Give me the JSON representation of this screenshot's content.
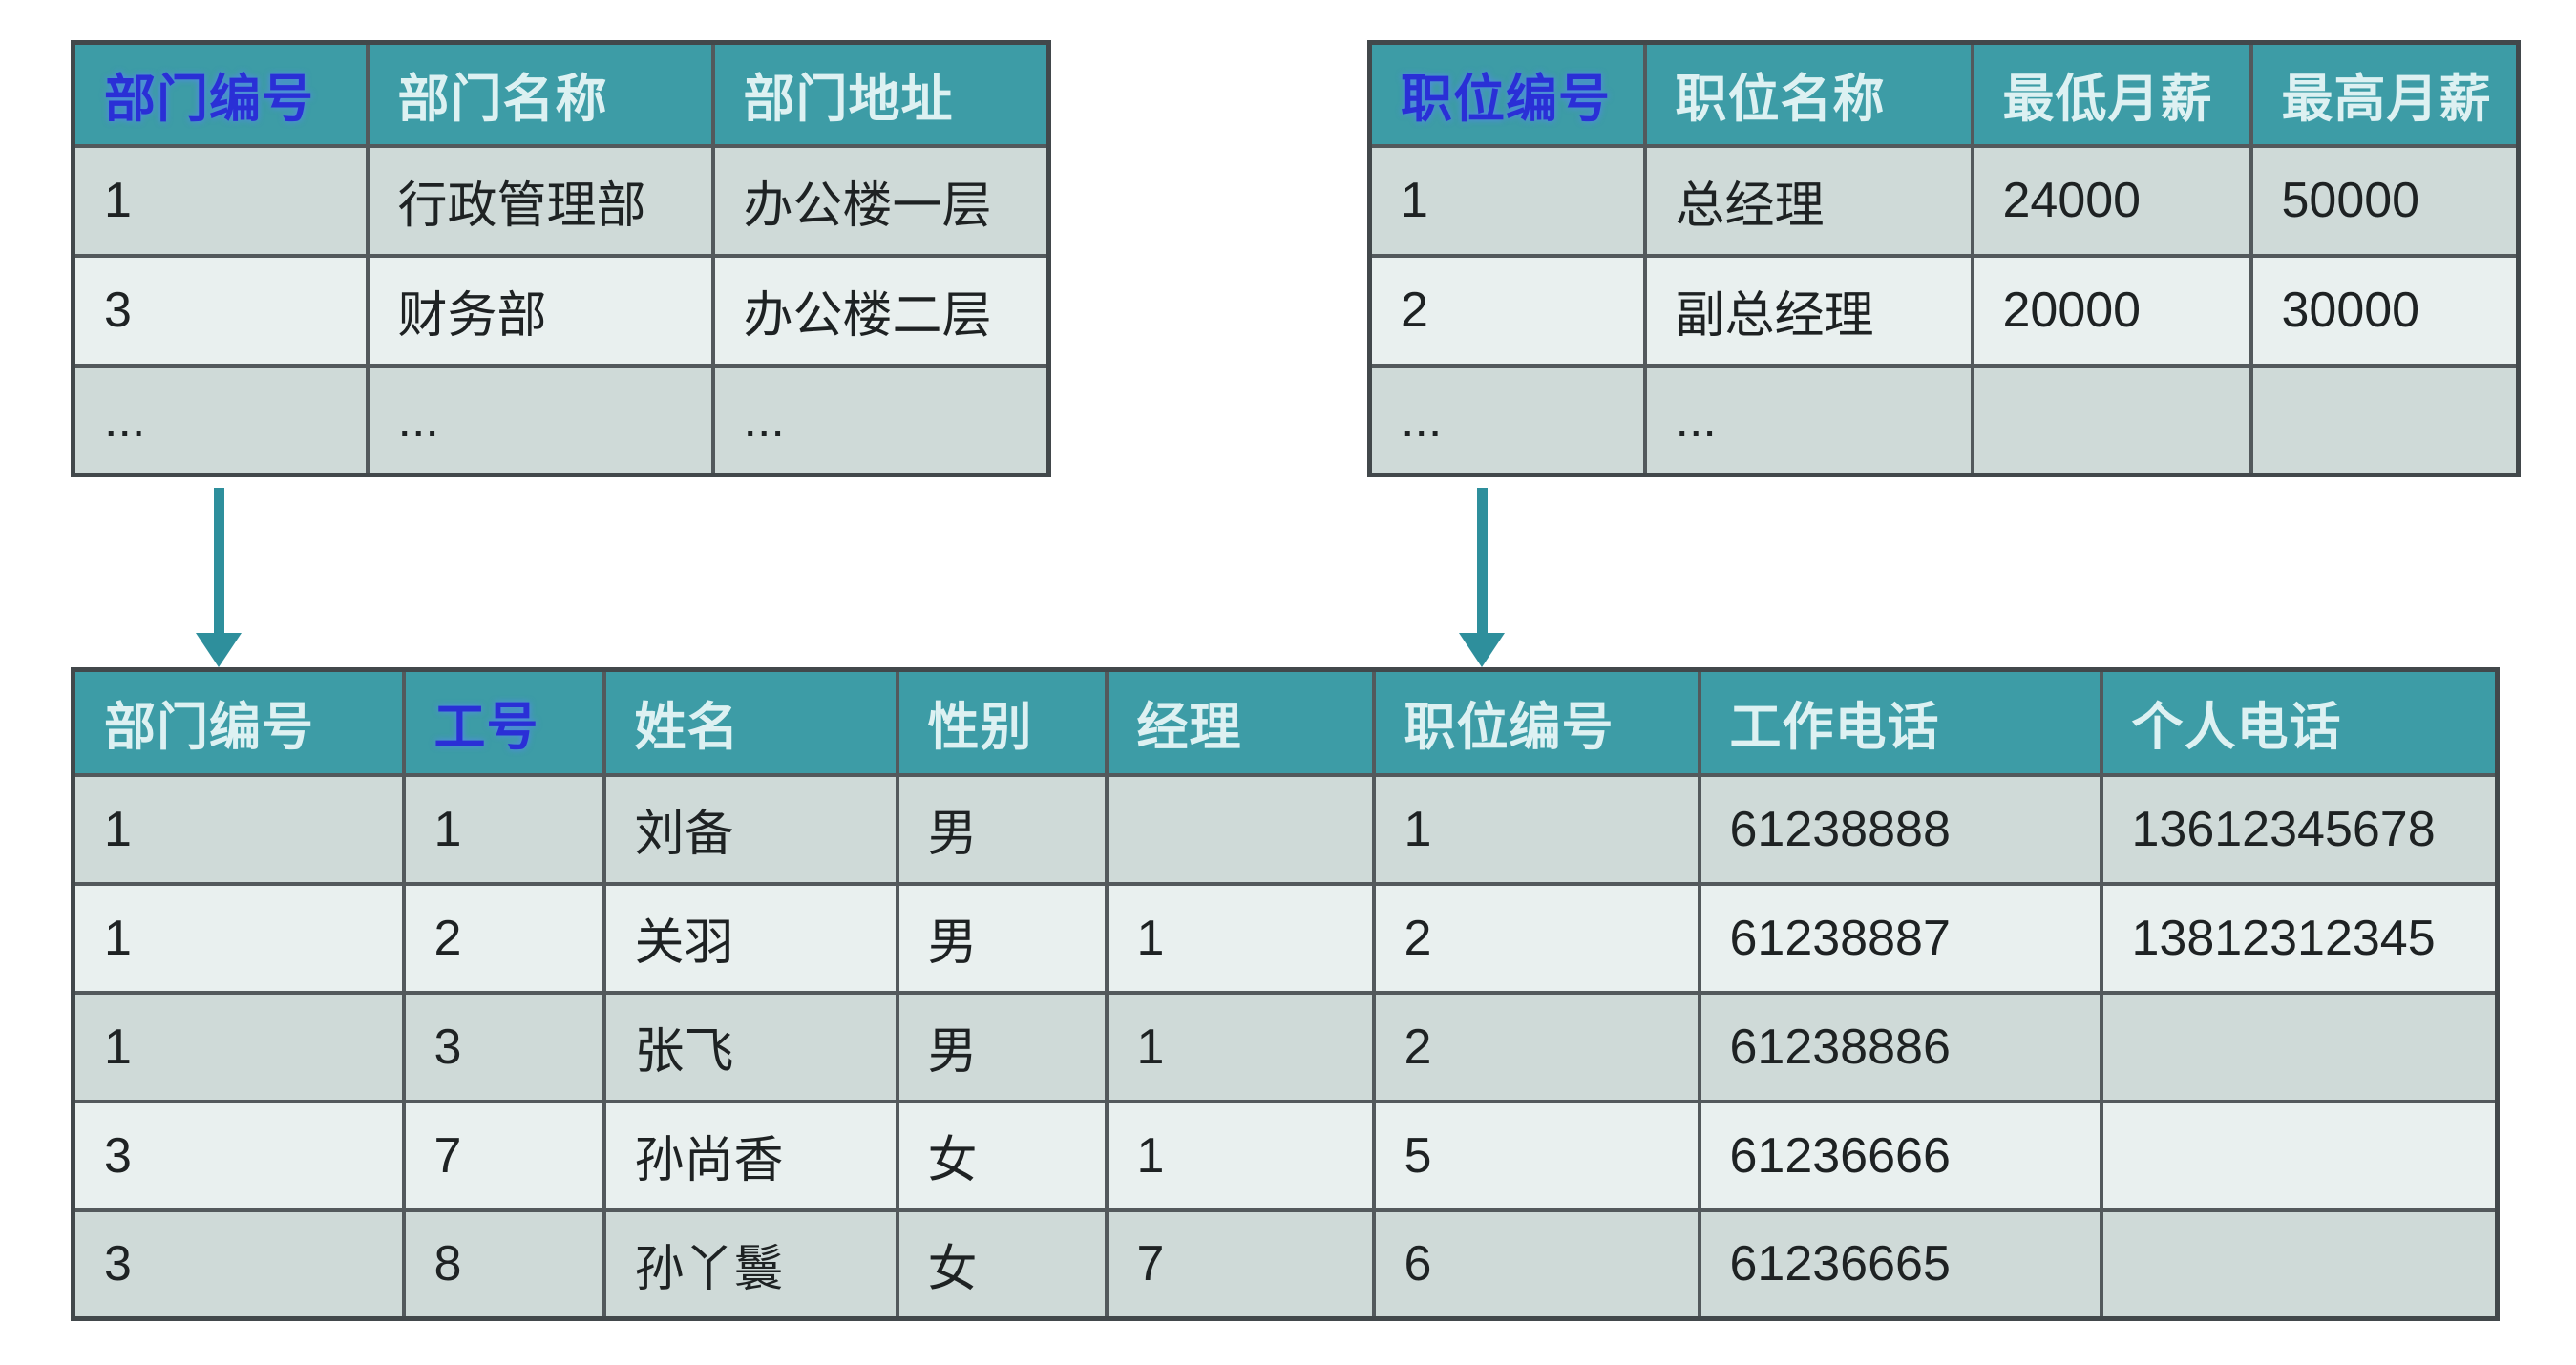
{
  "colors": {
    "header_bg": "#3d9ca6",
    "header_text": "#ddf1f2",
    "key_text": "#2a2fd6",
    "row_odd": "#cfdad8",
    "row_even": "#e9f0ef",
    "border": "#53595c",
    "arrow": "#2e8f9c",
    "cell_text": "#1e2223"
  },
  "icons": {
    "fk_arrow": "arrow-down"
  },
  "tables": {
    "department": {
      "columns": [
        {
          "label": "部门编号",
          "key": true
        },
        {
          "label": "部门名称",
          "key": false
        },
        {
          "label": "部门地址",
          "key": false
        }
      ],
      "rows": [
        [
          "1",
          "行政管理部",
          "办公楼一层"
        ],
        [
          "3",
          "财务部",
          "办公楼二层"
        ],
        [
          "...",
          "...",
          "..."
        ]
      ]
    },
    "position": {
      "columns": [
        {
          "label": "职位编号",
          "key": true
        },
        {
          "label": "职位名称",
          "key": false
        },
        {
          "label": "最低月薪",
          "key": false
        },
        {
          "label": "最高月薪",
          "key": false
        }
      ],
      "rows": [
        [
          "1",
          "总经理",
          "24000",
          "50000"
        ],
        [
          "2",
          "副总经理",
          "20000",
          "30000"
        ],
        [
          "...",
          "...",
          "",
          ""
        ]
      ]
    },
    "employee": {
      "columns": [
        {
          "label": "部门编号",
          "key": false
        },
        {
          "label": "工号",
          "key": true
        },
        {
          "label": "姓名",
          "key": false
        },
        {
          "label": "性别",
          "key": false
        },
        {
          "label": "经理",
          "key": false
        },
        {
          "label": "职位编号",
          "key": false
        },
        {
          "label": "工作电话",
          "key": false
        },
        {
          "label": "个人电话",
          "key": false
        }
      ],
      "rows": [
        [
          "1",
          "1",
          "刘备",
          "男",
          "",
          "1",
          "61238888",
          "13612345678"
        ],
        [
          "1",
          "2",
          "关羽",
          "男",
          "1",
          "2",
          "61238887",
          "13812312345"
        ],
        [
          "1",
          "3",
          "张飞",
          "男",
          "1",
          "2",
          "61238886",
          ""
        ],
        [
          "3",
          "7",
          "孙尚香",
          "女",
          "1",
          "5",
          "61236666",
          ""
        ],
        [
          "3",
          "8",
          "孙丫鬟",
          "女",
          "7",
          "6",
          "61236665",
          ""
        ]
      ]
    }
  }
}
